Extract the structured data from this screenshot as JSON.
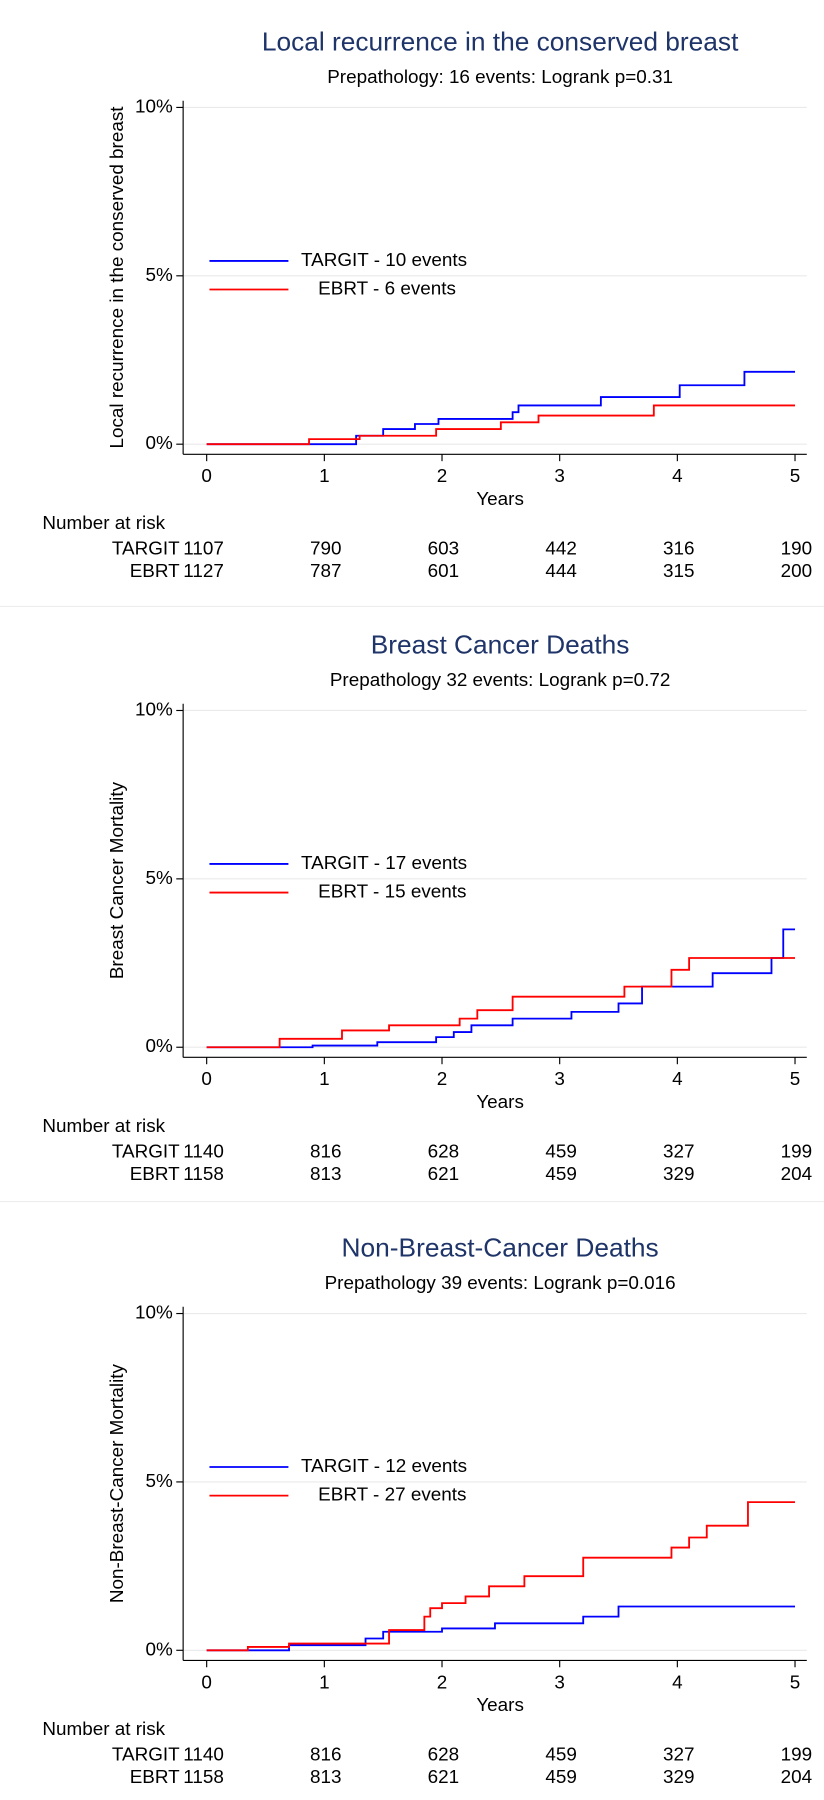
{
  "chart_data": [
    {
      "type": "line",
      "step": true,
      "title": "Local recurrence in the conserved breast",
      "subtitle": "Prepathology: 16 events: Logrank p=0.31",
      "ylabel": "Local recurrence in the conserved breast",
      "xlabel": "Years",
      "xlim": [
        -0.2,
        5.1
      ],
      "ylim": [
        -0.3,
        10.2
      ],
      "xticks": [
        0,
        1,
        2,
        3,
        4,
        5
      ],
      "yticks": [
        {
          "value": 0,
          "label": "0%"
        },
        {
          "value": 5,
          "label": "5%"
        },
        {
          "value": 10,
          "label": "10%"
        }
      ],
      "grid": true,
      "legend": "left",
      "series": [
        {
          "name": "TARGIT - 10 events",
          "color": "#0000ff",
          "x": [
            0,
            1.27,
            1.27,
            1.5,
            1.5,
            1.77,
            1.77,
            1.97,
            1.97,
            2.6,
            2.6,
            2.65,
            2.65,
            3.35,
            3.35,
            4.02,
            4.02,
            4.57,
            4.57,
            5
          ],
          "values": [
            0,
            0,
            0.25,
            0.25,
            0.45,
            0.45,
            0.6,
            0.6,
            0.75,
            0.75,
            0.95,
            0.95,
            1.15,
            1.15,
            1.4,
            1.4,
            1.75,
            1.75,
            2.15,
            2.15
          ]
        },
        {
          "name": "EBRT - 6 events",
          "color": "#ff0000",
          "x": [
            0,
            0.87,
            0.87,
            1.3,
            1.3,
            1.95,
            1.95,
            2.5,
            2.5,
            2.82,
            2.82,
            3.8,
            3.8,
            5
          ],
          "values": [
            0,
            0,
            0.15,
            0.15,
            0.25,
            0.25,
            0.45,
            0.45,
            0.65,
            0.65,
            0.85,
            0.85,
            1.15,
            1.15
          ]
        }
      ],
      "risk_title": "Number at risk",
      "risk": [
        {
          "name": "TARGIT",
          "values": [
            1107,
            790,
            603,
            442,
            316,
            190
          ]
        },
        {
          "name": "EBRT",
          "values": [
            1127,
            787,
            601,
            444,
            315,
            200
          ]
        }
      ]
    },
    {
      "type": "line",
      "step": true,
      "title": "Breast Cancer Deaths",
      "subtitle": "Prepathology 32 events: Logrank p=0.72",
      "ylabel": "Breast Cancer Mortality",
      "xlabel": "Years",
      "xlim": [
        -0.2,
        5.1
      ],
      "ylim": [
        -0.3,
        10.2
      ],
      "xticks": [
        0,
        1,
        2,
        3,
        4,
        5
      ],
      "yticks": [
        {
          "value": 0,
          "label": "0%"
        },
        {
          "value": 5,
          "label": "5%"
        },
        {
          "value": 10,
          "label": "10%"
        }
      ],
      "grid": true,
      "legend": "left",
      "series": [
        {
          "name": "TARGIT - 17 events",
          "color": "#0000ff",
          "x": [
            0,
            0.9,
            0.9,
            1.45,
            1.45,
            1.95,
            1.95,
            2.1,
            2.1,
            2.25,
            2.25,
            2.6,
            2.6,
            3.1,
            3.1,
            3.5,
            3.5,
            3.7,
            3.7,
            4.3,
            4.3,
            4.8,
            4.8,
            4.9,
            4.9,
            5
          ],
          "values": [
            0,
            0,
            0.05,
            0.05,
            0.15,
            0.15,
            0.3,
            0.3,
            0.45,
            0.45,
            0.65,
            0.65,
            0.85,
            0.85,
            1.05,
            1.05,
            1.3,
            1.3,
            1.8,
            1.8,
            2.2,
            2.2,
            2.65,
            2.65,
            3.5,
            3.5
          ]
        },
        {
          "name": "EBRT - 15 events",
          "color": "#ff0000",
          "x": [
            0,
            0.62,
            0.62,
            1.15,
            1.15,
            1.55,
            1.55,
            2.15,
            2.15,
            2.3,
            2.3,
            2.6,
            2.6,
            3.55,
            3.55,
            3.95,
            3.95,
            4.1,
            4.1,
            5
          ],
          "values": [
            0,
            0,
            0.25,
            0.25,
            0.5,
            0.5,
            0.65,
            0.65,
            0.85,
            0.85,
            1.1,
            1.1,
            1.5,
            1.5,
            1.8,
            1.8,
            2.3,
            2.3,
            2.65,
            2.65
          ]
        }
      ],
      "risk_title": "Number at risk",
      "risk": [
        {
          "name": "TARGIT",
          "values": [
            1140,
            816,
            628,
            459,
            327,
            199
          ]
        },
        {
          "name": "EBRT",
          "values": [
            1158,
            813,
            621,
            459,
            329,
            204
          ]
        }
      ]
    },
    {
      "type": "line",
      "step": true,
      "title": "Non-Breast-Cancer Deaths",
      "subtitle": "Prepathology 39 events: Logrank p=0.016",
      "ylabel": "Non-Breast-Cancer Mortality",
      "xlabel": "Years",
      "xlim": [
        -0.2,
        5.1
      ],
      "ylim": [
        -0.3,
        10.2
      ],
      "xticks": [
        0,
        1,
        2,
        3,
        4,
        5
      ],
      "yticks": [
        {
          "value": 0,
          "label": "0%"
        },
        {
          "value": 5,
          "label": "5%"
        },
        {
          "value": 10,
          "label": "10%"
        }
      ],
      "grid": true,
      "legend": "left",
      "series": [
        {
          "name": "TARGIT - 12 events",
          "color": "#0000ff",
          "x": [
            0,
            0.7,
            0.7,
            1.35,
            1.35,
            1.5,
            1.5,
            2,
            2,
            2.45,
            2.45,
            3.2,
            3.2,
            3.5,
            3.5,
            5
          ],
          "values": [
            0,
            0,
            0.15,
            0.15,
            0.35,
            0.35,
            0.55,
            0.55,
            0.65,
            0.65,
            0.8,
            0.8,
            1,
            1,
            1.3,
            1.3
          ]
        },
        {
          "name": "EBRT - 27 events",
          "color": "#ff0000",
          "x": [
            0,
            0.35,
            0.35,
            0.7,
            0.7,
            1.55,
            1.55,
            1.85,
            1.85,
            1.9,
            1.9,
            2,
            2,
            2.2,
            2.2,
            2.4,
            2.4,
            2.7,
            2.7,
            3.2,
            3.2,
            3.95,
            3.95,
            4.1,
            4.1,
            4.25,
            4.25,
            4.6,
            4.6,
            5
          ],
          "values": [
            0,
            0,
            0.1,
            0.1,
            0.2,
            0.2,
            0.6,
            0.6,
            1,
            1,
            1.25,
            1.25,
            1.4,
            1.4,
            1.6,
            1.6,
            1.9,
            1.9,
            2.2,
            2.2,
            2.75,
            2.75,
            3.05,
            3.05,
            3.35,
            3.35,
            3.7,
            3.7,
            4.4,
            4.4
          ]
        }
      ],
      "risk_title": "Number at risk",
      "risk": [
        {
          "name": "TARGIT",
          "values": [
            1140,
            816,
            628,
            459,
            327,
            199
          ]
        },
        {
          "name": "EBRT",
          "values": [
            1158,
            813,
            621,
            459,
            329,
            204
          ]
        }
      ]
    }
  ]
}
